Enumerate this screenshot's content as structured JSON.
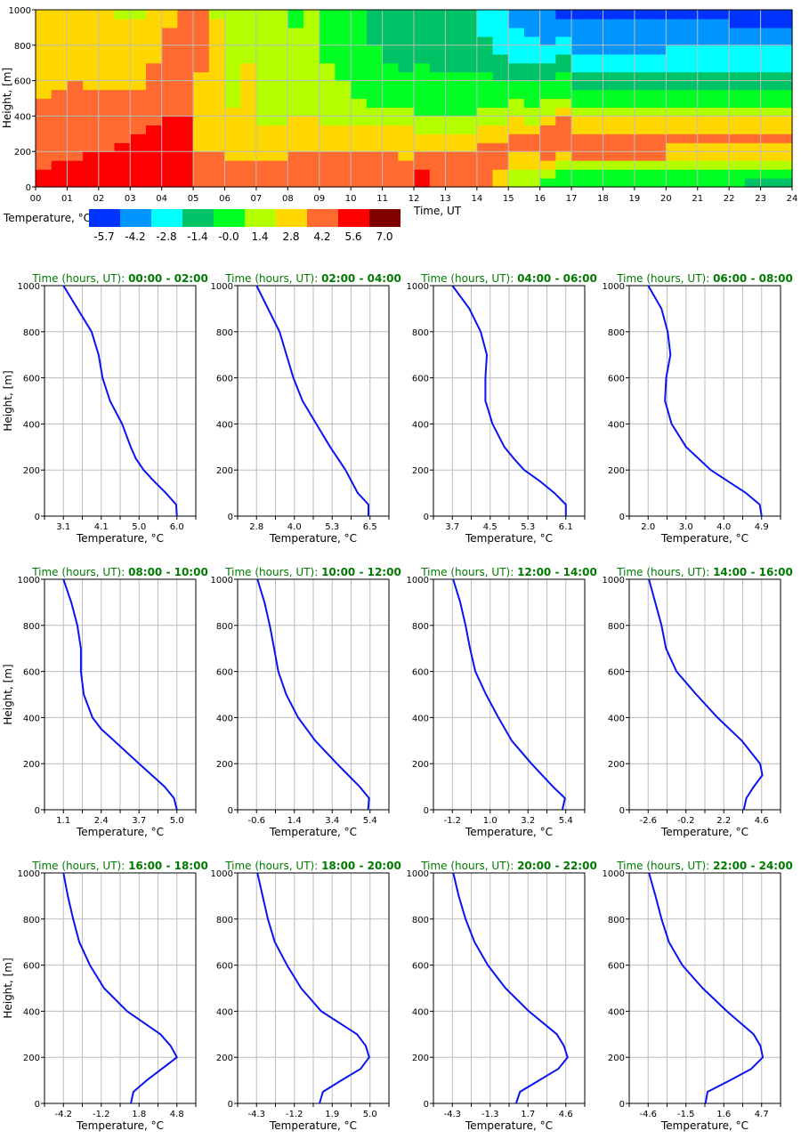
{
  "chart_data": [
    {
      "type": "heatmap",
      "xlabel": "Time, UT",
      "ylabel": "Height, [m]",
      "xticklabels": [
        "00",
        "01",
        "02",
        "03",
        "04",
        "05",
        "06",
        "07",
        "08",
        "09",
        "10",
        "11",
        "12",
        "13",
        "14",
        "15",
        "16",
        "17",
        "18",
        "19",
        "20",
        "21",
        "22",
        "23",
        "24"
      ],
      "xlim": [
        0,
        24
      ],
      "ylim": [
        0,
        1000
      ],
      "yticks": [
        0,
        200,
        400,
        600,
        800,
        1000
      ],
      "grid": true,
      "colorbar": {
        "label": "Temperature, °C",
        "ticklabels": [
          "-5.7",
          "-4.2",
          "-2.8",
          "-1.4",
          "-0.0",
          "1.4",
          "2.8",
          "4.2",
          "5.6",
          "7.0"
        ],
        "colors": [
          "#0033ff",
          "#0095ff",
          "#00ffff",
          "#00c266",
          "#00ff22",
          "#b3ff00",
          "#ffd700",
          "#ff6a30",
          "#ff0000",
          "#800000"
        ]
      },
      "cells": {
        "time_step_hours": 0.5,
        "height_step_m": 50,
        "note_columns_bottom_to_top_class_index": true,
        "columns": [
          "88777777776666666666",
          "88877777777666666666",
          "88877777777766666666",
          "88887777777666666666",
          "88887777777666666666",
          "88888777777666666665",
          "88888877777666666665",
          "88888887777777666666",
          "88888888777777777766",
          "88888888777777777777",
          "77776666666667777777",
          "77776666666666666665",
          "77766666655555555555",
          "77766666666666555555",
          "77766665555555555555",
          "77766665555555555555",
          "77776666555555555544",
          "77776666555555555555",
          "77776665555555444444",
          "77776665555544444444",
          "77776665554444444444",
          "77776665544444443333",
          "77776665544444333333",
          "77766665544443333333",
          "88776655444444333333",
          "77776655444443333333",
          "77776655444443333333",
          "77776655444443333333",
          "77777665544443333222",
          "66777665544433322222",
          "55667766554433222211",
          "55667765544433222111",
          "45677776554433221111",
          "44567777654443322110",
          "44577766544332211110",
          "44577766544332211110",
          "44577766544332211110",
          "44577766544332211110",
          "44577766544332211110",
          "44577766544332211110",
          "44566766544332221110",
          "44566766544332221110",
          "44566766544332221110",
          "44566766544332221110",
          "44566766544332221100",
          "34566766544332221100",
          "34566766544332221100",
          "34566766544332221100"
        ]
      }
    },
    {
      "type": "line",
      "title_prefix": "Time (hours, UT): ",
      "time_range": "00:00 - 02:00",
      "xlabel": "Temperature, °C",
      "ylabel": "Height, [m]",
      "xticklabels": [
        "3.1",
        "4.1",
        "5.0",
        "6.0"
      ],
      "ylim": [
        0,
        1000
      ],
      "yticks": [
        0,
        200,
        400,
        600,
        800,
        1000
      ],
      "points": [
        [
          6.0,
          0
        ],
        [
          5.98,
          50
        ],
        [
          5.72,
          100
        ],
        [
          5.42,
          150
        ],
        [
          5.15,
          200
        ],
        [
          4.95,
          250
        ],
        [
          4.82,
          300
        ],
        [
          4.6,
          400
        ],
        [
          4.29,
          500
        ],
        [
          4.1,
          600
        ],
        [
          4.0,
          700
        ],
        [
          3.82,
          800
        ],
        [
          3.1,
          1000
        ]
      ]
    },
    {
      "type": "line",
      "title_prefix": "Time (hours, UT): ",
      "time_range": "02:00 - 04:00",
      "xlabel": "Temperature, °C",
      "ylabel": "",
      "xticklabels": [
        "2.8",
        "4.0",
        "5.3",
        "6.5"
      ],
      "ylim": [
        0,
        1000
      ],
      "yticks": [
        0,
        200,
        400,
        600,
        800,
        1000
      ],
      "points": [
        [
          6.45,
          0
        ],
        [
          6.45,
          50
        ],
        [
          6.1,
          100
        ],
        [
          5.7,
          200
        ],
        [
          5.2,
          300
        ],
        [
          4.75,
          400
        ],
        [
          4.3,
          500
        ],
        [
          4.0,
          600
        ],
        [
          3.55,
          800
        ],
        [
          2.8,
          1000
        ]
      ]
    },
    {
      "type": "line",
      "title_prefix": "Time (hours, UT): ",
      "time_range": "04:00 - 06:00",
      "xlabel": "Temperature, °C",
      "ylabel": "",
      "xticklabels": [
        "3.7",
        "4.5",
        "5.3",
        "6.1"
      ],
      "ylim": [
        0,
        1000
      ],
      "yticks": [
        0,
        200,
        400,
        600,
        800,
        1000
      ],
      "points": [
        [
          6.1,
          0
        ],
        [
          6.1,
          50
        ],
        [
          5.86,
          100
        ],
        [
          5.56,
          150
        ],
        [
          5.22,
          200
        ],
        [
          5.0,
          250
        ],
        [
          4.8,
          300
        ],
        [
          4.55,
          400
        ],
        [
          4.4,
          500
        ],
        [
          4.4,
          600
        ],
        [
          4.43,
          700
        ],
        [
          4.3,
          800
        ],
        [
          4.06,
          900
        ],
        [
          3.7,
          1000
        ]
      ]
    },
    {
      "type": "line",
      "title_prefix": "Time (hours, UT): ",
      "time_range": "06:00 - 08:00",
      "xlabel": "Temperature, °C",
      "ylabel": "",
      "xticklabels": [
        "2.0",
        "3.0",
        "4.0",
        "4.9"
      ],
      "ylim": [
        0,
        1000
      ],
      "yticks": [
        0,
        200,
        400,
        600,
        800,
        1000
      ],
      "points": [
        [
          4.9,
          0
        ],
        [
          4.85,
          50
        ],
        [
          4.5,
          100
        ],
        [
          3.6,
          200
        ],
        [
          2.97,
          300
        ],
        [
          2.6,
          400
        ],
        [
          2.43,
          500
        ],
        [
          2.46,
          600
        ],
        [
          2.57,
          700
        ],
        [
          2.5,
          800
        ],
        [
          2.34,
          900
        ],
        [
          2.0,
          1000
        ]
      ]
    },
    {
      "type": "line",
      "title_prefix": "Time (hours, UT): ",
      "time_range": "08:00 - 10:00",
      "xlabel": "Temperature, °C",
      "ylabel": "Height, [m]",
      "xticklabels": [
        "1.1",
        "2.4",
        "3.7",
        "5.0"
      ],
      "ylim": [
        0,
        1000
      ],
      "yticks": [
        0,
        200,
        400,
        600,
        800,
        1000
      ],
      "points": [
        [
          5.0,
          0
        ],
        [
          4.9,
          50
        ],
        [
          4.58,
          100
        ],
        [
          3.7,
          200
        ],
        [
          2.84,
          300
        ],
        [
          2.4,
          350
        ],
        [
          2.1,
          400
        ],
        [
          1.8,
          500
        ],
        [
          1.7,
          600
        ],
        [
          1.7,
          700
        ],
        [
          1.58,
          800
        ],
        [
          1.37,
          900
        ],
        [
          1.1,
          1000
        ]
      ]
    },
    {
      "type": "line",
      "title_prefix": "Time (hours, UT): ",
      "time_range": "10:00 - 12:00",
      "xlabel": "Temperature, °C",
      "ylabel": "",
      "xticklabels": [
        "-0.6",
        "1.4",
        "3.4",
        "5.4"
      ],
      "ylim": [
        0,
        1000
      ],
      "yticks": [
        0,
        200,
        400,
        600,
        800,
        1000
      ],
      "points": [
        [
          5.3,
          0
        ],
        [
          5.35,
          50
        ],
        [
          4.85,
          100
        ],
        [
          3.65,
          200
        ],
        [
          2.5,
          300
        ],
        [
          1.6,
          400
        ],
        [
          0.97,
          500
        ],
        [
          0.55,
          600
        ],
        [
          0.33,
          700
        ],
        [
          0.1,
          800
        ],
        [
          -0.18,
          900
        ],
        [
          -0.55,
          1000
        ]
      ]
    },
    {
      "type": "line",
      "title_prefix": "Time (hours, UT): ",
      "time_range": "12:00 - 14:00",
      "xlabel": "Temperature, °C",
      "ylabel": "",
      "xticklabels": [
        "-1.2",
        "1.0",
        "3.2",
        "5.4"
      ],
      "ylim": [
        0,
        1000
      ],
      "yticks": [
        0,
        200,
        400,
        600,
        800,
        1000
      ],
      "points": [
        [
          5.2,
          0
        ],
        [
          5.35,
          50
        ],
        [
          4.65,
          100
        ],
        [
          3.4,
          200
        ],
        [
          2.25,
          300
        ],
        [
          1.48,
          400
        ],
        [
          0.76,
          500
        ],
        [
          0.14,
          600
        ],
        [
          -0.17,
          700
        ],
        [
          -0.43,
          800
        ],
        [
          -0.74,
          900
        ],
        [
          -1.15,
          1000
        ]
      ]
    },
    {
      "type": "line",
      "title_prefix": "Time (hours, UT): ",
      "time_range": "14:00 - 16:00",
      "xlabel": "Temperature, °C",
      "ylabel": "",
      "xticklabels": [
        "-2.6",
        "-0.2",
        "2.2",
        "4.6"
      ],
      "ylim": [
        0,
        1000
      ],
      "yticks": [
        0,
        200,
        400,
        600,
        800,
        1000
      ],
      "points": [
        [
          3.47,
          0
        ],
        [
          3.63,
          50
        ],
        [
          4.1,
          100
        ],
        [
          4.65,
          150
        ],
        [
          4.5,
          200
        ],
        [
          3.34,
          300
        ],
        [
          1.8,
          400
        ],
        [
          0.46,
          500
        ],
        [
          -0.8,
          600
        ],
        [
          -1.47,
          700
        ],
        [
          -1.75,
          800
        ],
        [
          -2.15,
          900
        ],
        [
          -2.55,
          1000
        ]
      ]
    },
    {
      "type": "line",
      "title_prefix": "Time (hours, UT): ",
      "time_range": "16:00 - 18:00",
      "xlabel": "Temperature, °C",
      "ylabel": "Height, [m]",
      "xticklabels": [
        "-4.2",
        "-1.2",
        "1.8",
        "4.8"
      ],
      "ylim": [
        0,
        1000
      ],
      "yticks": [
        0,
        200,
        400,
        600,
        800,
        1000
      ],
      "points": [
        [
          1.15,
          0
        ],
        [
          1.35,
          50
        ],
        [
          2.4,
          100
        ],
        [
          3.6,
          150
        ],
        [
          4.8,
          200
        ],
        [
          4.3,
          250
        ],
        [
          3.5,
          300
        ],
        [
          0.85,
          400
        ],
        [
          -0.98,
          500
        ],
        [
          -2.1,
          600
        ],
        [
          -2.94,
          700
        ],
        [
          -3.43,
          800
        ],
        [
          -3.85,
          900
        ],
        [
          -4.2,
          1000
        ]
      ]
    },
    {
      "type": "line",
      "title_prefix": "Time (hours, UT): ",
      "time_range": "18:00 - 20:00",
      "xlabel": "Temperature, °C",
      "ylabel": "",
      "xticklabels": [
        "-4.3",
        "-1.2",
        "1.9",
        "5.0"
      ],
      "ylim": [
        0,
        1000
      ],
      "yticks": [
        0,
        200,
        400,
        600,
        800,
        1000
      ],
      "points": [
        [
          0.86,
          0
        ],
        [
          1.14,
          50
        ],
        [
          2.65,
          100
        ],
        [
          4.22,
          150
        ],
        [
          4.93,
          200
        ],
        [
          4.65,
          250
        ],
        [
          3.93,
          300
        ],
        [
          1.0,
          400
        ],
        [
          -0.65,
          500
        ],
        [
          -1.8,
          600
        ],
        [
          -2.8,
          700
        ],
        [
          -3.37,
          800
        ],
        [
          -3.8,
          900
        ],
        [
          -4.23,
          1000
        ]
      ]
    },
    {
      "type": "line",
      "title_prefix": "Time (hours, UT): ",
      "time_range": "20:00 - 22:00",
      "xlabel": "Temperature, °C",
      "ylabel": "",
      "xticklabels": [
        "-4.3",
        "-1.3",
        "1.7",
        "4.6"
      ],
      "ylim": [
        0,
        1000
      ],
      "yticks": [
        0,
        200,
        400,
        600,
        800,
        1000
      ],
      "points": [
        [
          0.7,
          0
        ],
        [
          1.0,
          50
        ],
        [
          2.5,
          100
        ],
        [
          4.0,
          150
        ],
        [
          4.74,
          200
        ],
        [
          4.45,
          250
        ],
        [
          3.9,
          300
        ],
        [
          1.7,
          400
        ],
        [
          -0.13,
          500
        ],
        [
          -1.52,
          600
        ],
        [
          -2.56,
          700
        ],
        [
          -3.26,
          800
        ],
        [
          -3.8,
          900
        ],
        [
          -4.23,
          1000
        ]
      ]
    },
    {
      "type": "line",
      "title_prefix": "Time (hours, UT): ",
      "time_range": "22:00 - 24:00",
      "xlabel": "Temperature, °C",
      "ylabel": "",
      "xticklabels": [
        "-4.6",
        "-1.5",
        "1.6",
        "4.7"
      ],
      "ylim": [
        0,
        1000
      ],
      "yticks": [
        0,
        200,
        400,
        600,
        800,
        1000
      ],
      "points": [
        [
          0.1,
          0
        ],
        [
          0.27,
          50
        ],
        [
          2.1,
          100
        ],
        [
          3.85,
          150
        ],
        [
          4.8,
          200
        ],
        [
          4.6,
          250
        ],
        [
          4.04,
          300
        ],
        [
          1.85,
          400
        ],
        [
          -0.13,
          500
        ],
        [
          -1.8,
          600
        ],
        [
          -2.9,
          700
        ],
        [
          -3.5,
          800
        ],
        [
          -4.0,
          900
        ],
        [
          -4.53,
          1000
        ]
      ]
    }
  ],
  "style": {
    "line_color": "#0a14f0",
    "grid_color": "#bdbdbd",
    "title_color": "#007a00"
  }
}
